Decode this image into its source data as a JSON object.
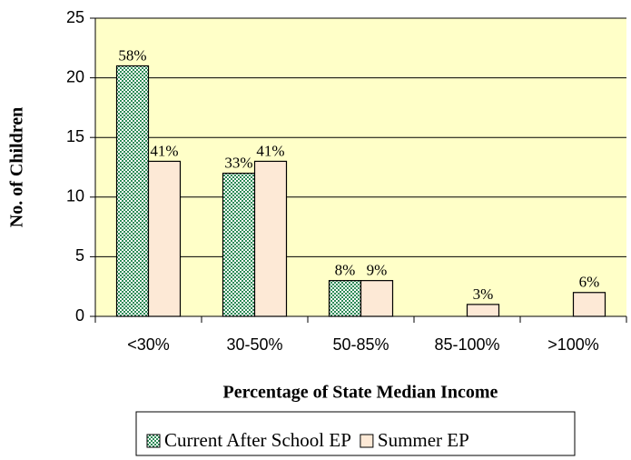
{
  "chart_data": {
    "type": "bar",
    "ylabel": "No. of Children",
    "xlabel": "Percentage of State Median Income",
    "categories": [
      "<30%",
      "30-50%",
      "50-85%",
      "85-100%",
      ">100%"
    ],
    "series": [
      {
        "name": "Current After School EP",
        "color": "#2e8b57",
        "values": [
          21,
          12,
          3,
          null,
          null
        ],
        "value_labels": [
          "58%",
          "33%",
          "8%",
          null,
          null
        ]
      },
      {
        "name": "Summer EP",
        "color": "#fde9d6",
        "values": [
          13,
          13,
          3,
          1,
          2
        ],
        "value_labels": [
          "41%",
          "41%",
          "9%",
          "3%",
          "6%"
        ]
      }
    ],
    "ylim": [
      0,
      25
    ],
    "yticks": [
      0,
      5,
      10,
      15,
      20,
      25
    ],
    "grid": true,
    "plot_background": "#ffffc8",
    "legend": "bottom"
  }
}
